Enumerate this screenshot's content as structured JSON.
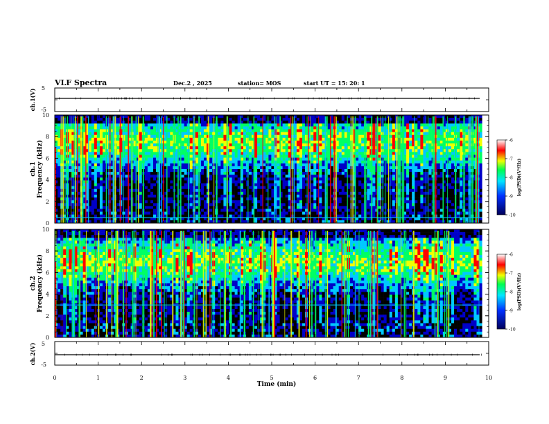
{
  "header": {
    "title": "VLF Spectra",
    "date": "Dec.2  , 2025",
    "station": "station= MOS",
    "start": "start  UT  =   15: 20: 1"
  },
  "chart_data": [
    {
      "type": "line",
      "name": "ch1-waveform",
      "ylabel": "ch.1(V)",
      "ylim": [
        -5,
        5
      ],
      "y_ticks": [
        "5",
        "-5"
      ],
      "level": 0
    },
    {
      "type": "heatmap",
      "name": "ch1-spectrogram",
      "ylabel_line1": "ch.1",
      "ylabel_line2": "Frequency (kHz)",
      "ylim": [
        0,
        10
      ],
      "y_ticks": [
        "0",
        "2",
        "4",
        "6",
        "8",
        "10"
      ],
      "colorbar": {
        "label": "log(PSD)(V²/Hz)",
        "range": [
          -10,
          -6
        ],
        "ticks": [
          "-6",
          "-7",
          "-8",
          "-9",
          "-10"
        ]
      },
      "band_center_khz": 7.5,
      "hum_line_khz": 0.5
    },
    {
      "type": "heatmap",
      "name": "ch2-spectrogram",
      "ylabel_line1": "ch.2",
      "ylabel_line2": "Frequency (kHz)",
      "ylim": [
        0,
        10
      ],
      "y_ticks": [
        "0",
        "2",
        "4",
        "6",
        "8",
        "10"
      ],
      "colorbar": {
        "label": "log(PSD)(V²/Hz)",
        "range": [
          -10,
          -6
        ],
        "ticks": [
          "-6",
          "-7",
          "-8",
          "-9",
          "-10"
        ]
      },
      "band_center_khz": 7.0,
      "hum_line_khz": 3.0
    },
    {
      "type": "line",
      "name": "ch2-waveform",
      "ylabel": "ch.2(V)",
      "ylim": [
        -5,
        5
      ],
      "y_ticks": [
        "5",
        "-5"
      ],
      "level": 0
    }
  ],
  "xaxis": {
    "label": "Time (min)",
    "range": [
      0,
      10
    ],
    "ticks": [
      "0",
      "1",
      "2",
      "3",
      "4",
      "5",
      "6",
      "7",
      "8",
      "9",
      "10"
    ],
    "data_end": 9.85
  },
  "colors": {
    "black": "#000000",
    "blue": "#0000c8",
    "cyan": "#00c8ff",
    "green": "#00ff64",
    "yellow": "#f0ff00",
    "red": "#ff0000",
    "pink": "#ffc8c8"
  }
}
